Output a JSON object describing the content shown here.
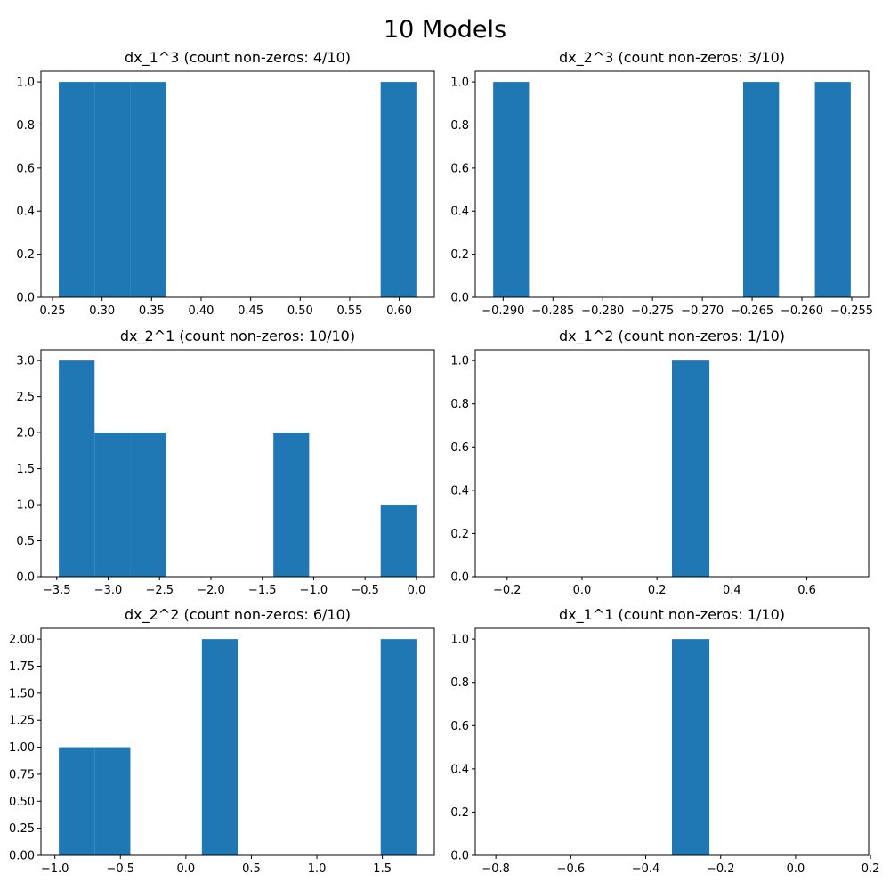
{
  "figure": {
    "suptitle": "10 Models",
    "bar_color": "#1f77b4"
  },
  "chart_data": [
    {
      "type": "bar",
      "title": "dx_1^3 (count non-zeros: 4/10)",
      "xlabel": "",
      "ylabel": "",
      "bins": [
        {
          "x0": 0.2563,
          "x1": 0.2924,
          "value": 1
        },
        {
          "x0": 0.2924,
          "x1": 0.3285,
          "value": 1
        },
        {
          "x0": 0.3285,
          "x1": 0.3646,
          "value": 1
        },
        {
          "x0": 0.5812,
          "x1": 0.6173,
          "value": 1
        }
      ],
      "xlim": [
        0.2383,
        0.6354
      ],
      "ylim": [
        0,
        1.05
      ],
      "xticks": [
        0.25,
        0.3,
        0.35,
        0.4,
        0.45,
        0.5,
        0.55,
        0.6
      ],
      "xtick_labels": [
        "0.25",
        "0.30",
        "0.35",
        "0.40",
        "0.45",
        "0.50",
        "0.55",
        "0.60"
      ],
      "yticks": [
        0.0,
        0.2,
        0.4,
        0.6,
        0.8,
        1.0
      ],
      "ytick_labels": [
        "0.0",
        "0.2",
        "0.4",
        "0.6",
        "0.8",
        "1.0"
      ]
    },
    {
      "type": "bar",
      "title": "dx_2^3 (count non-zeros: 3/10)",
      "xlabel": "",
      "ylabel": "",
      "bins": [
        {
          "x0": -0.291,
          "x1": -0.2874,
          "value": 1
        },
        {
          "x0": -0.2659,
          "x1": -0.2623,
          "value": 1
        },
        {
          "x0": -0.2587,
          "x1": -0.2551,
          "value": 1
        }
      ],
      "xlim": [
        -0.2928,
        -0.2533
      ],
      "ylim": [
        0,
        1.05
      ],
      "xticks": [
        -0.29,
        -0.285,
        -0.28,
        -0.275,
        -0.27,
        -0.265,
        -0.26,
        -0.255
      ],
      "xtick_labels": [
        "−0.290",
        "−0.285",
        "−0.280",
        "−0.275",
        "−0.270",
        "−0.265",
        "−0.260",
        "−0.255"
      ],
      "yticks": [
        0.0,
        0.2,
        0.4,
        0.6,
        0.8,
        1.0
      ],
      "ytick_labels": [
        "0.0",
        "0.2",
        "0.4",
        "0.6",
        "0.8",
        "1.0"
      ]
    },
    {
      "type": "bar",
      "title": "dx_2^1 (count non-zeros: 10/10)",
      "xlabel": "",
      "ylabel": "",
      "bins": [
        {
          "x0": -3.48,
          "x1": -3.132,
          "value": 3
        },
        {
          "x0": -3.132,
          "x1": -2.784,
          "value": 2
        },
        {
          "x0": -2.784,
          "x1": -2.436,
          "value": 2
        },
        {
          "x0": -1.392,
          "x1": -1.044,
          "value": 2
        },
        {
          "x0": -0.348,
          "x1": 0.0,
          "value": 1
        }
      ],
      "xlim": [
        -3.654,
        0.174
      ],
      "ylim": [
        0,
        3.15
      ],
      "xticks": [
        -3.5,
        -3.0,
        -2.5,
        -2.0,
        -1.5,
        -1.0,
        -0.5,
        0.0
      ],
      "xtick_labels": [
        "−3.5",
        "−3.0",
        "−2.5",
        "−2.0",
        "−1.5",
        "−1.0",
        "−0.5",
        "0.0"
      ],
      "yticks": [
        0.0,
        0.5,
        1.0,
        1.5,
        2.0,
        2.5,
        3.0
      ],
      "ytick_labels": [
        "0.0",
        "0.5",
        "1.0",
        "1.5",
        "2.0",
        "2.5",
        "3.0"
      ]
    },
    {
      "type": "bar",
      "title": "dx_1^2 (count non-zeros: 1/10)",
      "xlabel": "",
      "ylabel": "",
      "bins": [
        {
          "x0": 0.24,
          "x1": 0.34,
          "value": 1
        }
      ],
      "xlim": [
        -0.285,
        0.765
      ],
      "ylim": [
        0,
        1.05
      ],
      "xticks": [
        -0.2,
        0.0,
        0.2,
        0.4,
        0.6
      ],
      "xtick_labels": [
        "−0.2",
        "0.0",
        "0.2",
        "0.4",
        "0.6"
      ],
      "yticks": [
        0.0,
        0.2,
        0.4,
        0.6,
        0.8,
        1.0
      ],
      "ytick_labels": [
        "0.0",
        "0.2",
        "0.4",
        "0.6",
        "0.8",
        "1.0"
      ]
    },
    {
      "type": "bar",
      "title": "dx_2^2 (count non-zeros: 6/10)",
      "xlabel": "",
      "ylabel": "",
      "bins": [
        {
          "x0": -0.97,
          "x1": -0.697,
          "value": 1
        },
        {
          "x0": -0.697,
          "x1": -0.424,
          "value": 1
        },
        {
          "x0": 0.122,
          "x1": 0.395,
          "value": 2
        },
        {
          "x0": 1.487,
          "x1": 1.76,
          "value": 2
        }
      ],
      "xlim": [
        -1.1065,
        1.8965
      ],
      "ylim": [
        0,
        2.1
      ],
      "xticks": [
        -1.0,
        -0.5,
        0.0,
        0.5,
        1.0,
        1.5
      ],
      "xtick_labels": [
        "−1.0",
        "−0.5",
        "0.0",
        "0.5",
        "1.0",
        "1.5"
      ],
      "yticks": [
        0.0,
        0.25,
        0.5,
        0.75,
        1.0,
        1.25,
        1.5,
        1.75,
        2.0
      ],
      "ytick_labels": [
        "0.00",
        "0.25",
        "0.50",
        "0.75",
        "1.00",
        "1.25",
        "1.50",
        "1.75",
        "2.00"
      ]
    },
    {
      "type": "bar",
      "title": "dx_1^1 (count non-zeros: 1/10)",
      "xlabel": "",
      "ylabel": "",
      "bins": [
        {
          "x0": -0.33,
          "x1": -0.23,
          "value": 1
        }
      ],
      "xlim": [
        -0.855,
        0.195
      ],
      "ylim": [
        0,
        1.05
      ],
      "xticks": [
        -0.8,
        -0.6,
        -0.4,
        -0.2,
        0.0,
        0.2
      ],
      "xtick_labels": [
        "−0.8",
        "−0.6",
        "−0.4",
        "−0.2",
        "0.0",
        "0.2"
      ],
      "yticks": [
        0.0,
        0.2,
        0.4,
        0.6,
        0.8,
        1.0
      ],
      "ytick_labels": [
        "0.0",
        "0.2",
        "0.4",
        "0.6",
        "0.8",
        "1.0"
      ]
    }
  ]
}
